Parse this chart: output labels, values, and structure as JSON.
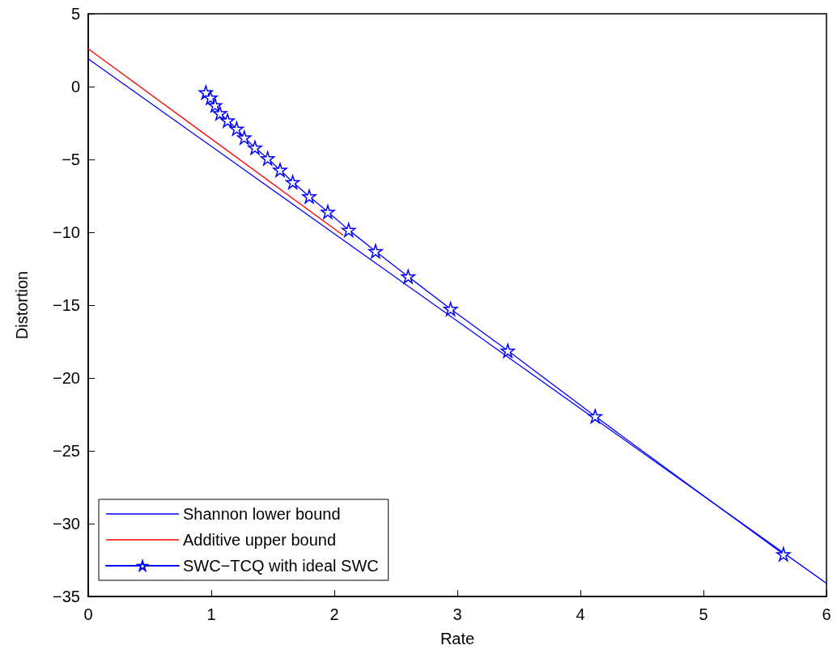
{
  "chart_data": {
    "type": "line",
    "xlabel": "Rate",
    "ylabel": "Distortion",
    "xlim": [
      0,
      6
    ],
    "xticks": [
      0,
      1,
      2,
      3,
      4,
      5,
      6
    ],
    "ylim": [
      -35,
      5
    ],
    "yticks": [
      -35,
      -30,
      -25,
      -20,
      -15,
      -10,
      -5,
      0,
      5
    ],
    "grid": false,
    "legend": "bottom left",
    "series": [
      {
        "name": "Shannon lower bound",
        "color": "#0000ff",
        "marker": "none",
        "x": [
          0,
          6
        ],
        "values": [
          1.9,
          -34.1
        ]
      },
      {
        "name": "Additive upper bound",
        "color": "#ff0000",
        "marker": "none",
        "x": [
          0,
          2.07
        ],
        "values": [
          2.6,
          -10.2
        ]
      },
      {
        "name": "SWC−TCQ with ideal SWC",
        "color": "#0000ff",
        "marker": "star",
        "x": [
          0.956,
          0.993,
          1.031,
          1.07,
          1.132,
          1.206,
          1.268,
          1.355,
          1.458,
          1.559,
          1.662,
          1.796,
          1.947,
          2.117,
          2.335,
          2.6,
          2.945,
          3.41,
          4.12,
          5.65
        ],
        "values": [
          -0.4,
          -0.76,
          -1.28,
          -1.83,
          -2.33,
          -2.89,
          -3.5,
          -4.19,
          -4.93,
          -5.72,
          -6.56,
          -7.54,
          -8.6,
          -9.84,
          -11.3,
          -13.04,
          -15.26,
          -18.13,
          -22.63,
          -32.1
        ]
      }
    ]
  }
}
